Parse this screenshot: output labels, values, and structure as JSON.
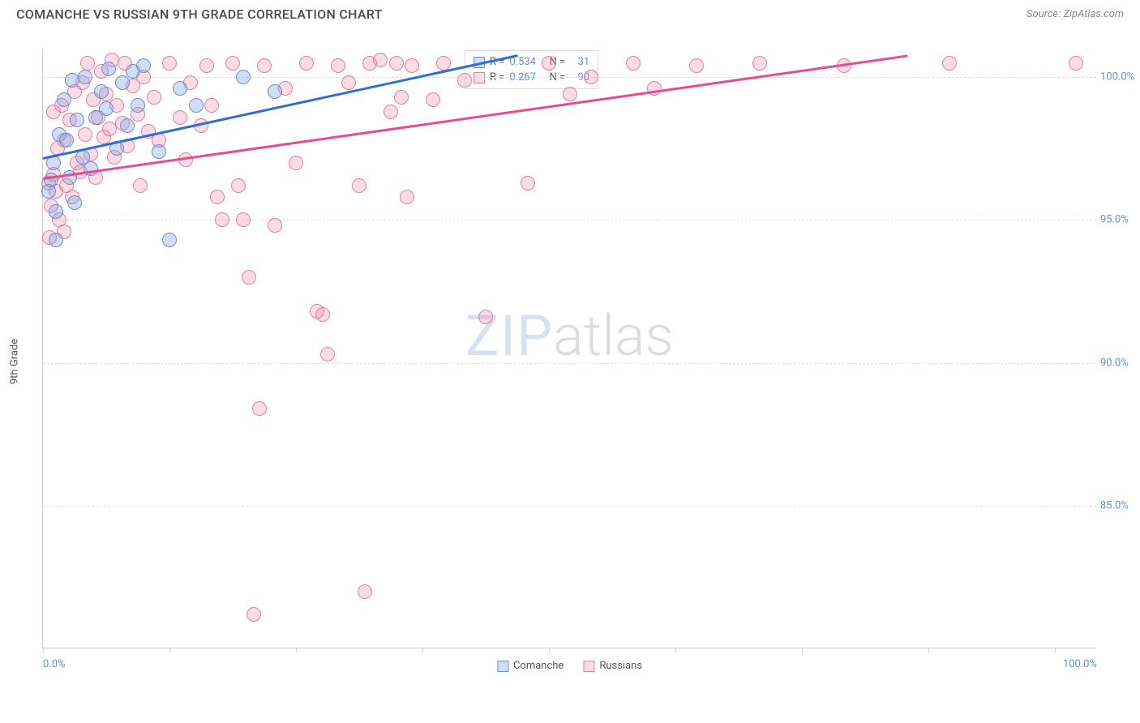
{
  "header": {
    "title": "COMANCHE VS RUSSIAN 9TH GRADE CORRELATION CHART",
    "source_prefix": "Source: ",
    "source_name": "ZipAtlas.com"
  },
  "watermark": {
    "zip": "ZIP",
    "atlas": "atlas"
  },
  "chart": {
    "type": "scatter",
    "ylabel": "9th Grade",
    "background_color": "#ffffff",
    "grid_color": "#dddddd",
    "axis_color": "#cccccc",
    "tick_label_color": "#6b8fd4",
    "xlim": [
      0,
      100
    ],
    "ylim": [
      80,
      101
    ],
    "xticks_major": [
      0,
      12,
      24,
      36,
      48,
      60,
      72,
      84,
      96
    ],
    "xtick_labels": {
      "0": "0.0%",
      "100": "100.0%"
    },
    "ytick_positions": [
      85,
      90,
      95,
      100
    ],
    "ytick_labels": [
      "85.0%",
      "90.0%",
      "95.0%",
      "100.0%"
    ],
    "marker_radius": 9,
    "marker_stroke_width": 1.2,
    "series": [
      {
        "name": "Comanche",
        "fill": "rgba(120,160,220,0.35)",
        "stroke": "#6b8fd4",
        "trend_color": "#2e6fd4",
        "R": "0.534",
        "N": "31",
        "trend": {
          "x1": 0,
          "y1": 97.2,
          "x2": 45,
          "y2": 100.8
        },
        "points": [
          [
            0.5,
            96.0
          ],
          [
            0.8,
            96.4
          ],
          [
            1.0,
            97.0
          ],
          [
            1.2,
            95.3
          ],
          [
            1.2,
            94.3
          ],
          [
            1.5,
            98.0
          ],
          [
            2.0,
            99.2
          ],
          [
            2.2,
            97.8
          ],
          [
            2.5,
            96.5
          ],
          [
            2.8,
            99.9
          ],
          [
            3.0,
            95.6
          ],
          [
            3.2,
            98.5
          ],
          [
            3.8,
            97.2
          ],
          [
            4.0,
            100.0
          ],
          [
            4.5,
            96.8
          ],
          [
            5.0,
            98.6
          ],
          [
            5.5,
            99.5
          ],
          [
            6.0,
            98.9
          ],
          [
            6.2,
            100.3
          ],
          [
            7.0,
            97.5
          ],
          [
            7.5,
            99.8
          ],
          [
            8.0,
            98.3
          ],
          [
            8.5,
            100.2
          ],
          [
            9.0,
            99.0
          ],
          [
            9.5,
            100.4
          ],
          [
            11.0,
            97.4
          ],
          [
            12.0,
            94.3
          ],
          [
            13.0,
            99.6
          ],
          [
            14.5,
            99.0
          ],
          [
            19.0,
            100.0
          ],
          [
            22.0,
            99.5
          ]
        ]
      },
      {
        "name": "Russians",
        "fill": "rgba(240,140,170,0.30)",
        "stroke": "#e87da3",
        "trend_color": "#e84b8a",
        "R": "0.267",
        "N": "90",
        "trend": {
          "x1": 0,
          "y1": 96.5,
          "x2": 82,
          "y2": 100.8
        },
        "points": [
          [
            0.5,
            96.3
          ],
          [
            0.6,
            94.4
          ],
          [
            0.8,
            95.5
          ],
          [
            1.0,
            96.6
          ],
          [
            1.0,
            98.8
          ],
          [
            1.2,
            96.0
          ],
          [
            1.4,
            97.5
          ],
          [
            1.5,
            95.0
          ],
          [
            1.8,
            99.0
          ],
          [
            2.0,
            94.6
          ],
          [
            2.0,
            97.8
          ],
          [
            2.2,
            96.2
          ],
          [
            2.5,
            98.5
          ],
          [
            2.8,
            95.8
          ],
          [
            3.0,
            99.5
          ],
          [
            3.2,
            97.0
          ],
          [
            3.5,
            96.7
          ],
          [
            3.8,
            99.8
          ],
          [
            4.0,
            98.0
          ],
          [
            4.2,
            100.5
          ],
          [
            4.5,
            97.3
          ],
          [
            4.8,
            99.2
          ],
          [
            5.0,
            96.5
          ],
          [
            5.2,
            98.6
          ],
          [
            5.5,
            100.2
          ],
          [
            5.8,
            97.9
          ],
          [
            6.0,
            99.4
          ],
          [
            6.3,
            98.2
          ],
          [
            6.5,
            100.6
          ],
          [
            6.8,
            97.2
          ],
          [
            7.0,
            99.0
          ],
          [
            7.5,
            98.4
          ],
          [
            7.8,
            100.5
          ],
          [
            8.0,
            97.6
          ],
          [
            8.5,
            99.7
          ],
          [
            9.0,
            98.7
          ],
          [
            9.2,
            96.2
          ],
          [
            9.5,
            100.0
          ],
          [
            10.0,
            98.1
          ],
          [
            10.5,
            99.3
          ],
          [
            11.0,
            97.8
          ],
          [
            12.0,
            100.5
          ],
          [
            13.0,
            98.6
          ],
          [
            13.5,
            97.1
          ],
          [
            14.0,
            99.8
          ],
          [
            15.0,
            98.3
          ],
          [
            15.5,
            100.4
          ],
          [
            16.0,
            99.0
          ],
          [
            16.5,
            95.8
          ],
          [
            17.0,
            95.0
          ],
          [
            18.0,
            100.5
          ],
          [
            18.5,
            96.2
          ],
          [
            19.0,
            95.0
          ],
          [
            19.5,
            93.0
          ],
          [
            20.0,
            81.2
          ],
          [
            20.5,
            88.4
          ],
          [
            21.0,
            100.4
          ],
          [
            22.0,
            94.8
          ],
          [
            23.0,
            99.6
          ],
          [
            24.0,
            97.0
          ],
          [
            25.0,
            100.5
          ],
          [
            26.0,
            91.8
          ],
          [
            26.5,
            91.7
          ],
          [
            27.0,
            90.3
          ],
          [
            28.0,
            100.4
          ],
          [
            29.0,
            99.8
          ],
          [
            30.0,
            96.2
          ],
          [
            30.5,
            82.0
          ],
          [
            31.0,
            100.5
          ],
          [
            32.0,
            100.6
          ],
          [
            33.0,
            98.8
          ],
          [
            33.5,
            100.5
          ],
          [
            34.0,
            99.3
          ],
          [
            34.5,
            95.8
          ],
          [
            35.0,
            100.4
          ],
          [
            37.0,
            99.2
          ],
          [
            38.0,
            100.5
          ],
          [
            40.0,
            99.9
          ],
          [
            42.0,
            91.6
          ],
          [
            46.0,
            96.3
          ],
          [
            48.0,
            100.5
          ],
          [
            50.0,
            99.4
          ],
          [
            52.0,
            100.0
          ],
          [
            56.0,
            100.5
          ],
          [
            58.0,
            99.6
          ],
          [
            62.0,
            100.4
          ],
          [
            68.0,
            100.5
          ],
          [
            76.0,
            100.4
          ],
          [
            86.0,
            100.5
          ],
          [
            98.0,
            100.5
          ]
        ]
      }
    ],
    "legend_bottom": [
      {
        "label": "Comanche",
        "fill": "rgba(120,160,220,0.35)",
        "stroke": "#6b8fd4"
      },
      {
        "label": "Russians",
        "fill": "rgba(240,140,170,0.30)",
        "stroke": "#e87da3"
      }
    ]
  }
}
